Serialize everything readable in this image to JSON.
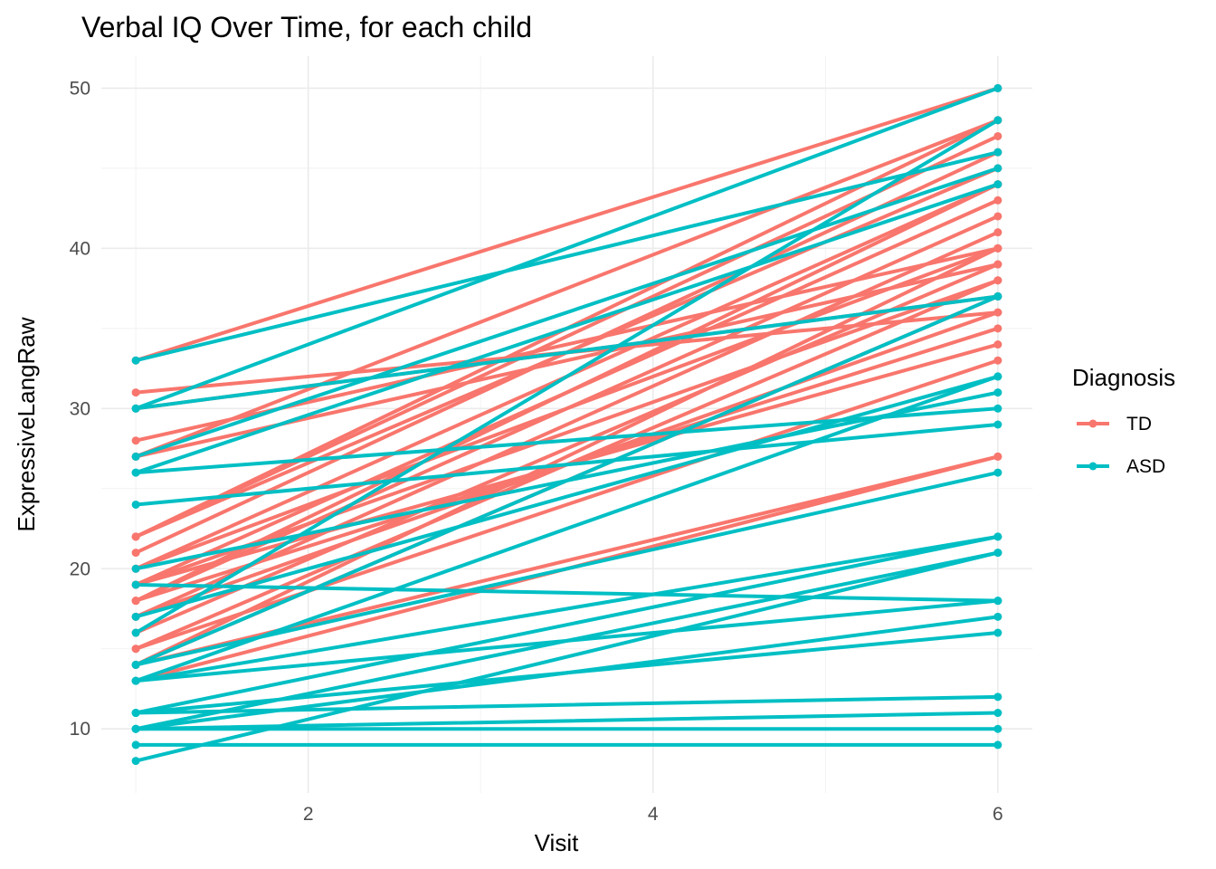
{
  "chart_data": {
    "type": "line",
    "title": "Verbal IQ Over Time, for each child",
    "xlabel": "Visit",
    "ylabel": "ExpressiveLangRaw",
    "xlim": [
      0.8,
      6.2
    ],
    "ylim": [
      6,
      52
    ],
    "x_ticks": [
      2,
      4,
      6
    ],
    "y_ticks": [
      10,
      20,
      30,
      40,
      50
    ],
    "grid": true,
    "legend": {
      "title": "Diagnosis",
      "position": "right"
    },
    "series": [
      {
        "name": "TD",
        "color": "#F8766D",
        "lines": [
          [
            1,
            33,
            6,
            50
          ],
          [
            1,
            31,
            6,
            36
          ],
          [
            1,
            30,
            6,
            37
          ],
          [
            1,
            28,
            6,
            40
          ],
          [
            1,
            27,
            6,
            48
          ],
          [
            1,
            27,
            6,
            39
          ],
          [
            1,
            22,
            6,
            48
          ],
          [
            1,
            22,
            6,
            47
          ],
          [
            1,
            22,
            6,
            45
          ],
          [
            1,
            21,
            6,
            46
          ],
          [
            1,
            20,
            6,
            44
          ],
          [
            1,
            20,
            6,
            40
          ],
          [
            1,
            19,
            6,
            43
          ],
          [
            1,
            19,
            6,
            38
          ],
          [
            1,
            19,
            6,
            34
          ],
          [
            1,
            18,
            6,
            44
          ],
          [
            1,
            18,
            6,
            42
          ],
          [
            1,
            18,
            6,
            35
          ],
          [
            1,
            17,
            6,
            41
          ],
          [
            1,
            17,
            6,
            36
          ],
          [
            1,
            16,
            6,
            39
          ],
          [
            1,
            15,
            6,
            38
          ],
          [
            1,
            15,
            6,
            33
          ],
          [
            1,
            14,
            6,
            40
          ],
          [
            1,
            14,
            6,
            37
          ],
          [
            1,
            14,
            6,
            27
          ],
          [
            1,
            13,
            6,
            27
          ]
        ]
      },
      {
        "name": "ASD",
        "color": "#00BFC4",
        "lines": [
          [
            1,
            33,
            6,
            46
          ],
          [
            1,
            30,
            6,
            50
          ],
          [
            1,
            30,
            6,
            37
          ],
          [
            1,
            27,
            6,
            45
          ],
          [
            1,
            26,
            6,
            44
          ],
          [
            1,
            26,
            6,
            30
          ],
          [
            1,
            24,
            6,
            29
          ],
          [
            1,
            20,
            6,
            31
          ],
          [
            1,
            19,
            6,
            18
          ],
          [
            1,
            17,
            6,
            32
          ],
          [
            1,
            16,
            6,
            48
          ],
          [
            1,
            14,
            6,
            37
          ],
          [
            1,
            14,
            6,
            26
          ],
          [
            1,
            13,
            6,
            32
          ],
          [
            1,
            13,
            6,
            22
          ],
          [
            1,
            13,
            6,
            18
          ],
          [
            1,
            11,
            6,
            22
          ],
          [
            1,
            11,
            6,
            16
          ],
          [
            1,
            11,
            6,
            12
          ],
          [
            1,
            10,
            6,
            21
          ],
          [
            1,
            10,
            6,
            17
          ],
          [
            1,
            10,
            6,
            11
          ],
          [
            1,
            10,
            6,
            10
          ],
          [
            1,
            9,
            6,
            9
          ],
          [
            1,
            8,
            6,
            21
          ]
        ]
      }
    ]
  }
}
